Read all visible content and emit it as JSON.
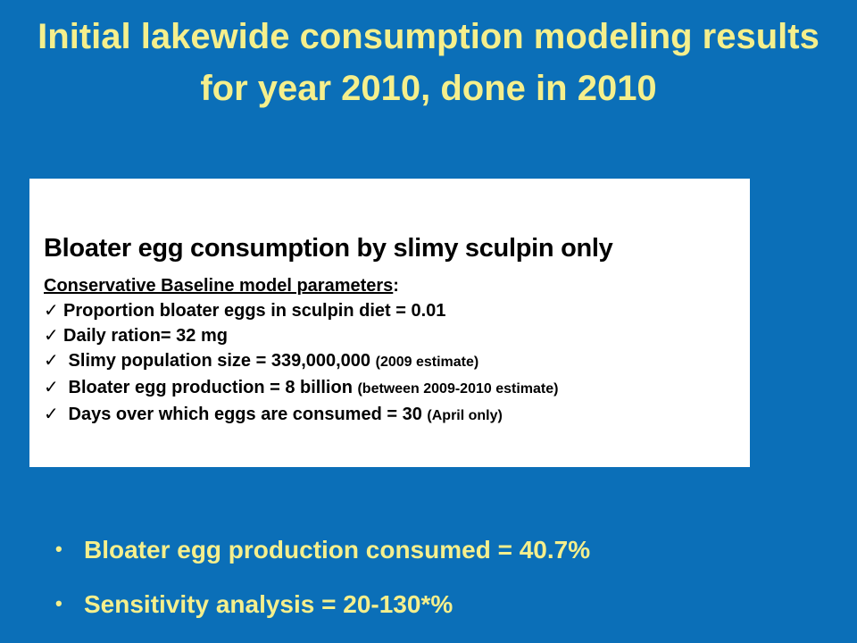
{
  "slide": {
    "title": "Initial lakewide consumption modeling results for year 2010, done in 2010"
  },
  "inset": {
    "title": "Bloater egg consumption by slimy sculpin only",
    "subtitle": "Conservative Baseline model parameters",
    "subtitle_suffix": ":",
    "check_glyph": "✓",
    "params": [
      {
        "text": "Proportion bloater eggs in sculpin diet = 0.01",
        "note": ""
      },
      {
        "text": "Daily ration= 32 mg",
        "note": ""
      },
      {
        "text": " Slimy population size = 339,000,000",
        "note": "(2009 estimate)"
      },
      {
        "text": " Bloater egg production = 8 billion",
        "note": "(between 2009-2010 estimate)"
      },
      {
        "text": " Days over which eggs are consumed = 30",
        "note": "(April only)"
      }
    ]
  },
  "bullets": {
    "glyph": "•",
    "items": [
      "Bloater egg production consumed = 40.7%",
      "Sensitivity analysis = 20-130*%"
    ]
  },
  "colors": {
    "background": "#0b6fb8",
    "title_text": "#f5ef8c",
    "inset_background": "#ffffff"
  }
}
